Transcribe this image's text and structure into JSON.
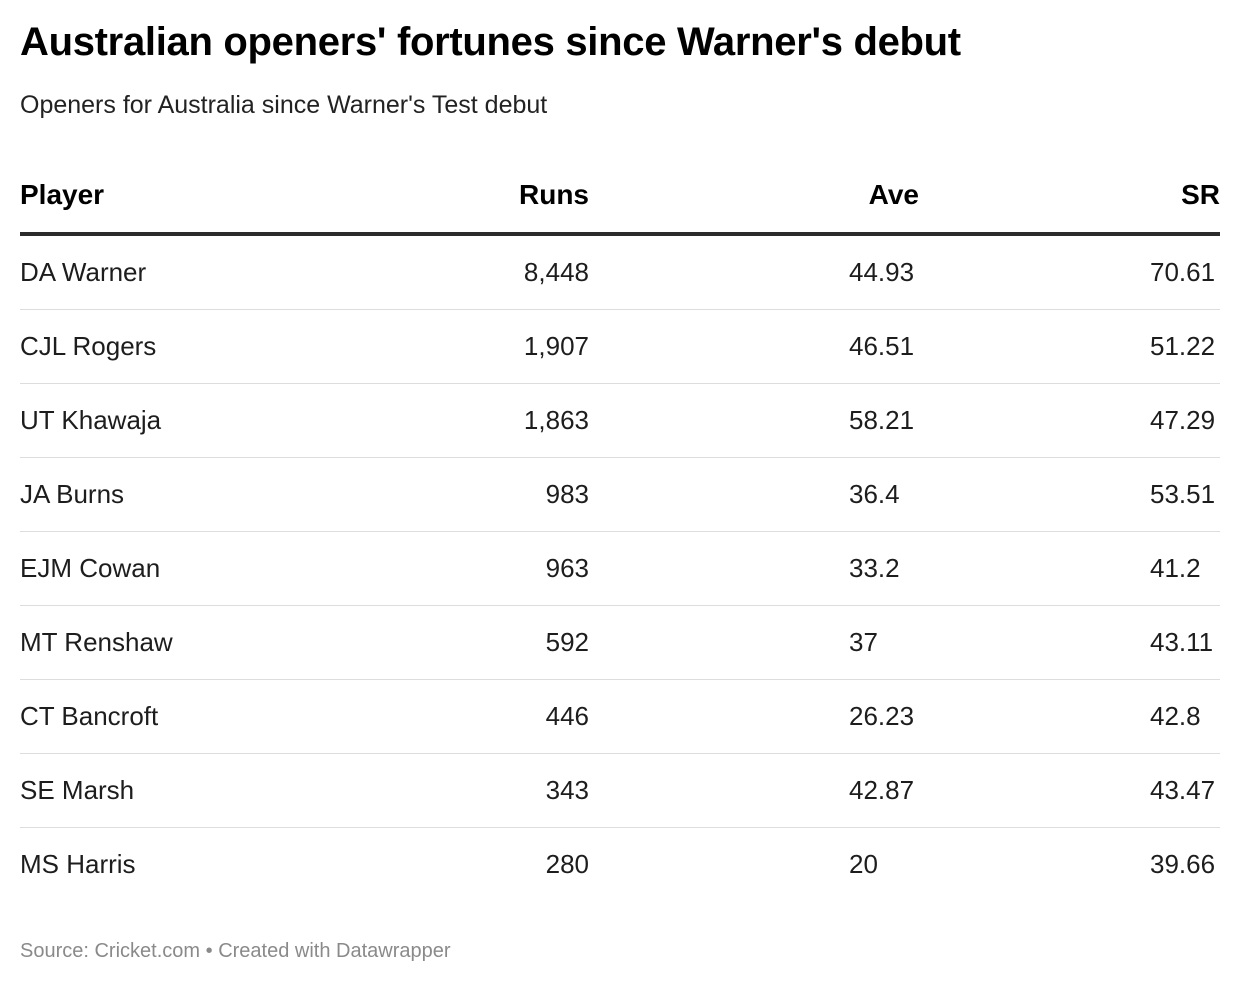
{
  "title": "Australian openers' fortunes since Warner's debut",
  "subtitle": "Openers for Australia since Warner's Test debut",
  "footer": {
    "source": "Source: Cricket.com",
    "separator": "•",
    "credit": "Created with Datawrapper"
  },
  "colors": {
    "title": "#000000",
    "text": "#1d1d1d",
    "header_rule": "#2b2b2b",
    "row_rule": "#dddddd",
    "footer": "#8a8a8a"
  },
  "chart_data": {
    "type": "table",
    "title": "Australian openers' fortunes since Warner's debut",
    "subtitle": "Openers for Australia since Warner's Test debut",
    "columns": [
      "Player",
      "Runs",
      "Ave",
      "SR"
    ],
    "rows": [
      {
        "player": "DA Warner",
        "runs": "8,448",
        "ave": "44.93",
        "sr": "70.61"
      },
      {
        "player": "CJL Rogers",
        "runs": "1,907",
        "ave": "46.51",
        "sr": "51.22"
      },
      {
        "player": "UT Khawaja",
        "runs": "1,863",
        "ave": "58.21",
        "sr": "47.29"
      },
      {
        "player": "JA Burns",
        "runs": "983",
        "ave": "36.4",
        "sr": "53.51"
      },
      {
        "player": "EJM Cowan",
        "runs": "963",
        "ave": "33.2",
        "sr": "41.2"
      },
      {
        "player": "MT Renshaw",
        "runs": "592",
        "ave": "37",
        "sr": "43.11"
      },
      {
        "player": "CT Bancroft",
        "runs": "446",
        "ave": "26.23",
        "sr": "42.8"
      },
      {
        "player": "SE Marsh",
        "runs": "343",
        "ave": "42.87",
        "sr": "43.47"
      },
      {
        "player": "MS Harris",
        "runs": "280",
        "ave": "20",
        "sr": "39.66"
      }
    ],
    "source": "Source: Cricket.com"
  }
}
